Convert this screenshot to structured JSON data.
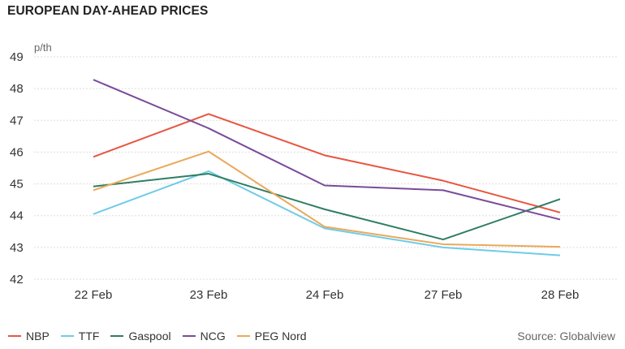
{
  "chart_data": {
    "type": "line",
    "title": "EUROPEAN DAY-AHEAD PRICES",
    "unit_label": "p/th",
    "source": "Source: Globalview",
    "categories": [
      "22 Feb",
      "23 Feb",
      "24 Feb",
      "27 Feb",
      "28 Feb"
    ],
    "ylim": [
      42,
      49
    ],
    "yticks": [
      42,
      43,
      44,
      45,
      46,
      47,
      48,
      49
    ],
    "grid": true,
    "legend_position": "bottom-left",
    "series": [
      {
        "name": "NBP",
        "color": "#e8553f",
        "values": [
          45.85,
          47.2,
          45.9,
          45.1,
          44.1
        ]
      },
      {
        "name": "TTF",
        "color": "#6fcbe8",
        "values": [
          44.05,
          45.4,
          43.6,
          43.0,
          42.75
        ]
      },
      {
        "name": "Gaspool",
        "color": "#2e7d62",
        "values": [
          44.92,
          45.32,
          44.2,
          43.25,
          44.52
        ]
      },
      {
        "name": "NCG",
        "color": "#7a4b9a",
        "values": [
          48.28,
          46.75,
          44.95,
          44.8,
          43.88
        ]
      },
      {
        "name": "PEG Nord",
        "color": "#e9a95a",
        "values": [
          44.8,
          46.02,
          43.65,
          43.1,
          43.02
        ]
      }
    ]
  }
}
